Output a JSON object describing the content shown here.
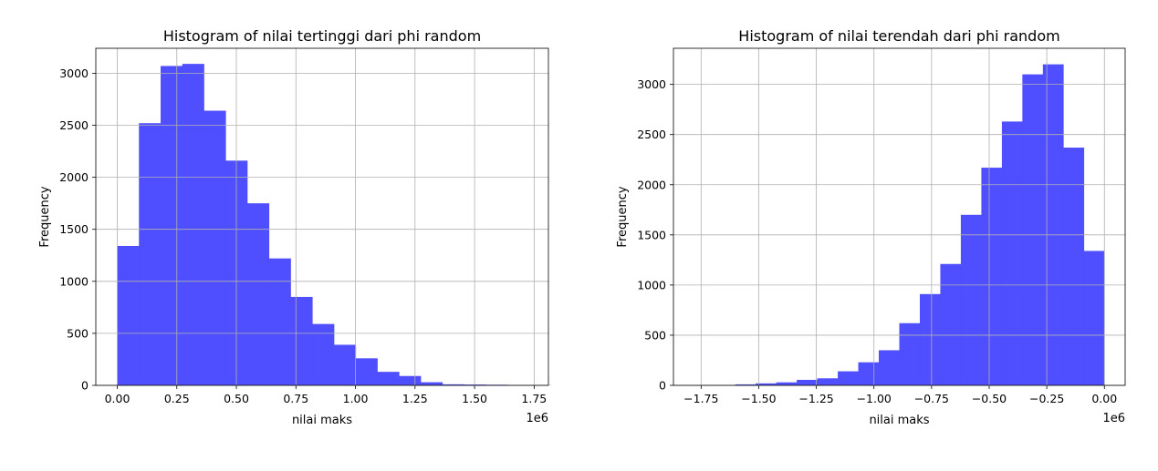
{
  "chart_data": [
    {
      "type": "bar",
      "title": "Histogram of nilai tertinggi dari phi random",
      "xlabel": "nilai maks",
      "ylabel": "Frequency",
      "x_offset_label": "1e6",
      "bar_color": "#4b4bff",
      "grid": true,
      "xlim": [
        -0.09,
        1.81
      ],
      "ylim": [
        0,
        3240
      ],
      "xticks": [
        0.0,
        0.25,
        0.5,
        0.75,
        1.0,
        1.25,
        1.5,
        1.75
      ],
      "xtick_labels": [
        "0.00",
        "0.25",
        "0.50",
        "0.75",
        "1.00",
        "1.25",
        "1.50",
        "1.75"
      ],
      "yticks": [
        0,
        500,
        1000,
        1500,
        2000,
        2500,
        3000
      ],
      "ytick_labels": [
        "0",
        "500",
        "1000",
        "1500",
        "2000",
        "2500",
        "3000"
      ],
      "bin_edges": [
        0.0,
        0.091,
        0.182,
        0.273,
        0.364,
        0.455,
        0.546,
        0.637,
        0.728,
        0.819,
        0.91,
        1.001,
        1.092,
        1.183,
        1.274,
        1.365,
        1.456,
        1.547,
        1.638,
        1.729,
        1.82
      ],
      "values": [
        1340,
        2520,
        3070,
        3090,
        2640,
        2160,
        1750,
        1220,
        850,
        590,
        390,
        260,
        130,
        90,
        30,
        10,
        8,
        6,
        3,
        2
      ]
    },
    {
      "type": "bar",
      "title": "Histogram of nilai terendah dari phi random",
      "xlabel": "nilai maks",
      "ylabel": "Frequency",
      "x_offset_label": "1e6",
      "bar_color": "#4b4bff",
      "grid": true,
      "xlim": [
        -1.87,
        0.09
      ],
      "ylim": [
        0,
        3360
      ],
      "xticks": [
        -1.75,
        -1.5,
        -1.25,
        -1.0,
        -0.75,
        -0.5,
        -0.25,
        0.0
      ],
      "xtick_labels": [
        "−1.75",
        "−1.50",
        "−1.25",
        "−1.00",
        "−0.75",
        "−0.50",
        "−0.25",
        "0.00"
      ],
      "yticks": [
        0,
        500,
        1000,
        1500,
        2000,
        2500,
        3000
      ],
      "ytick_labels": [
        "0",
        "500",
        "1000",
        "1500",
        "2000",
        "2500",
        "3000"
      ],
      "bin_edges": [
        -1.78,
        -1.691,
        -1.602,
        -1.513,
        -1.424,
        -1.335,
        -1.246,
        -1.157,
        -1.068,
        -0.979,
        -0.89,
        -0.801,
        -0.712,
        -0.623,
        -0.534,
        -0.445,
        -0.356,
        -0.267,
        -0.178,
        -0.089,
        0.0
      ],
      "values": [
        2,
        4,
        10,
        20,
        30,
        55,
        70,
        140,
        230,
        350,
        620,
        910,
        1210,
        1700,
        2170,
        2630,
        3100,
        3200,
        2370,
        1340
      ]
    }
  ]
}
